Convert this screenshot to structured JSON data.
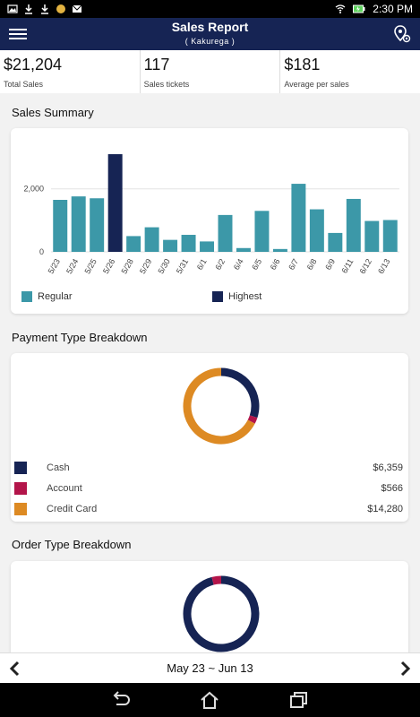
{
  "status_bar": {
    "time": "2:30 PM"
  },
  "header": {
    "title": "Sales Report",
    "subtitle": "( Kakurega )"
  },
  "kpis": [
    {
      "value": "$21,204",
      "label": "Total Sales"
    },
    {
      "value": "117",
      "label": "Sales tickets"
    },
    {
      "value": "$181",
      "label": "Average per sales"
    }
  ],
  "sales_summary": {
    "title": "Sales Summary",
    "legend": {
      "regular": "Regular",
      "highest": "Highest"
    }
  },
  "payment_breakdown": {
    "title": "Payment Type Breakdown",
    "rows": [
      {
        "label": "Cash",
        "amount": "$6,359",
        "color": "#162454"
      },
      {
        "label": "Account",
        "amount": "$566",
        "color": "#b3154a"
      },
      {
        "label": "Credit Card",
        "amount": "$14,280",
        "color": "#dd8a23"
      }
    ]
  },
  "order_breakdown": {
    "title": "Order Type Breakdown"
  },
  "date_nav": {
    "range": "May 23 ~ Jun 13"
  },
  "colors": {
    "regular": "#3c98a8",
    "highest": "#162454",
    "cash": "#162454",
    "account": "#b3154a",
    "credit": "#dd8a23"
  },
  "chart_data": [
    {
      "type": "bar",
      "categories": [
        "5/23",
        "5/24",
        "5/25",
        "5/26",
        "5/28",
        "5/29",
        "5/30",
        "5/31",
        "6/1",
        "6/2",
        "6/4",
        "6/5",
        "6/6",
        "6/7",
        "6/8",
        "6/9",
        "6/11",
        "6/12",
        "6/13"
      ],
      "values": [
        1650,
        1760,
        1700,
        3100,
        500,
        780,
        380,
        540,
        330,
        1170,
        120,
        1300,
        90,
        2160,
        1350,
        600,
        1680,
        980,
        1010
      ],
      "highest_index": 3,
      "yticks": [
        0,
        2000
      ],
      "ytick_labels": [
        "0",
        "2,000"
      ],
      "ylim": [
        0,
        3300
      ],
      "grid": true,
      "legend": [
        "Regular",
        "Highest"
      ],
      "legend_position": "bottom"
    },
    {
      "type": "pie",
      "labels": [
        "Cash",
        "Account",
        "Credit Card"
      ],
      "values": [
        6359,
        566,
        14280
      ],
      "donut": true
    },
    {
      "type": "pie",
      "values": [
        96,
        4
      ],
      "donut": true
    }
  ]
}
